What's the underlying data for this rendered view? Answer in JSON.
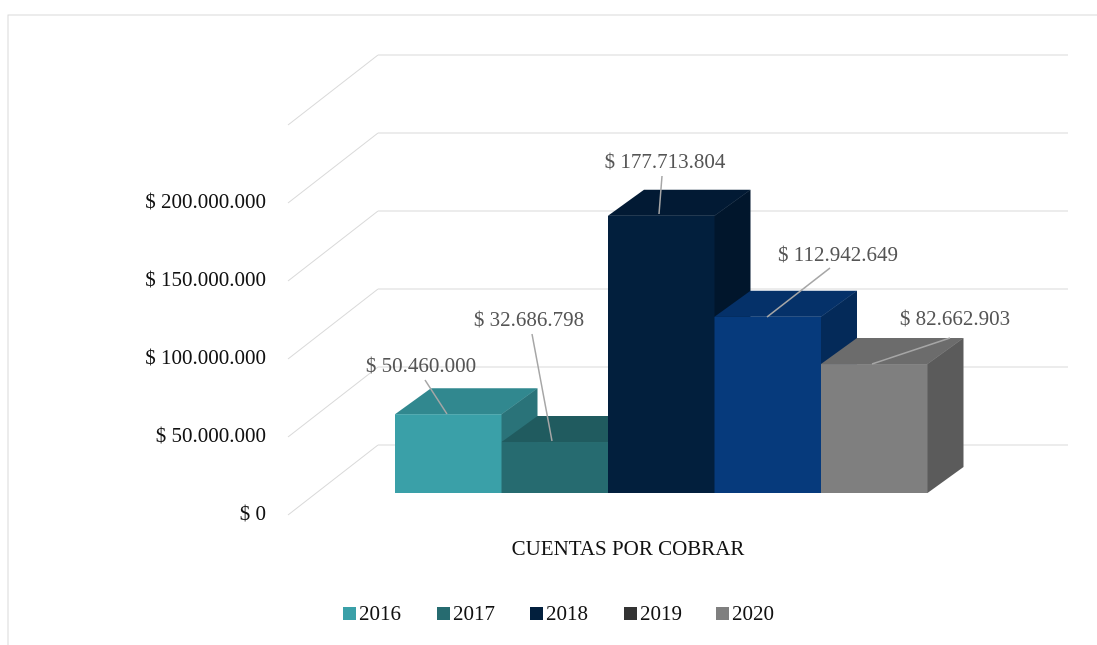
{
  "chart_data": {
    "type": "bar3d",
    "categories": [
      "CUENTAS POR COBRAR"
    ],
    "series": [
      {
        "name": "2016",
        "color": "#3aa0a8",
        "legend_color": "#3aa0a8",
        "values": [
          50460000
        ],
        "value_labels": [
          "$ 50.460.000"
        ]
      },
      {
        "name": "2017",
        "color": "#266b70",
        "legend_color": "#266b70",
        "values": [
          32686798
        ],
        "value_labels": [
          "$ 32.686.798"
        ]
      },
      {
        "name": "2018",
        "color": "#021f3d",
        "legend_color": "#021f3d",
        "values": [
          177713804
        ],
        "value_labels": [
          "$ 177.713.804"
        ]
      },
      {
        "name": "2019",
        "color": "#063a7c",
        "legend_color": "#333333",
        "values": [
          112942649
        ],
        "value_labels": [
          "$ 112.942.649"
        ]
      },
      {
        "name": "2020",
        "color": "#7f7f7f",
        "legend_color": "#7f7f7f",
        "values": [
          82662903
        ],
        "value_labels": [
          "$ 82.662.903"
        ]
      }
    ],
    "ylim": [
      0,
      250000000
    ],
    "yticks": [
      {
        "value": 0,
        "label": "$ 0"
      },
      {
        "value": 50000000,
        "label": "$ 50.000.000"
      },
      {
        "value": 100000000,
        "label": "$ 100.000.000"
      },
      {
        "value": 150000000,
        "label": "$ 150.000.000"
      },
      {
        "value": 200000000,
        "label": "$ 200.000.000"
      }
    ],
    "grid": true,
    "legend": "bottom"
  }
}
